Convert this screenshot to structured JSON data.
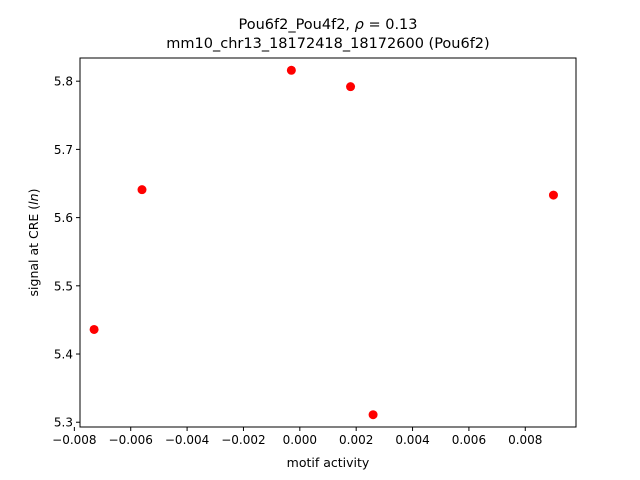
{
  "chart_data": {
    "type": "scatter",
    "title_line1_prefix": "Pou6f2_Pou4f2, ",
    "title_line1_rho": "ρ",
    "title_line1_suffix": " = 0.13",
    "title_line2": "mm10_chr13_18172418_18172600 (Pou6f2)",
    "xlabel": "motif activity",
    "ylabel_prefix": "signal at CRE (",
    "ylabel_italic": "ln",
    "ylabel_suffix": ")",
    "xlim": [
      -0.0078,
      0.0098
    ],
    "ylim": [
      5.293,
      5.834
    ],
    "x_ticks": [
      -0.008,
      -0.006,
      -0.004,
      -0.002,
      0.0,
      0.002,
      0.004,
      0.006,
      0.008
    ],
    "x_tick_labels": [
      "−0.008",
      "−0.006",
      "−0.004",
      "−0.002",
      "0.000",
      "0.002",
      "0.004",
      "0.006",
      "0.008"
    ],
    "y_ticks": [
      5.3,
      5.4,
      5.5,
      5.6,
      5.7,
      5.8
    ],
    "y_tick_labels": [
      "5.3",
      "5.4",
      "5.5",
      "5.6",
      "5.7",
      "5.8"
    ],
    "grid": false,
    "marker_color": "#ff0000",
    "points": [
      {
        "x": -0.0073,
        "y": 5.436
      },
      {
        "x": -0.0056,
        "y": 5.641
      },
      {
        "x": -0.0003,
        "y": 5.816
      },
      {
        "x": 0.0018,
        "y": 5.792
      },
      {
        "x": 0.0026,
        "y": 5.311
      },
      {
        "x": 0.009,
        "y": 5.633
      }
    ]
  }
}
